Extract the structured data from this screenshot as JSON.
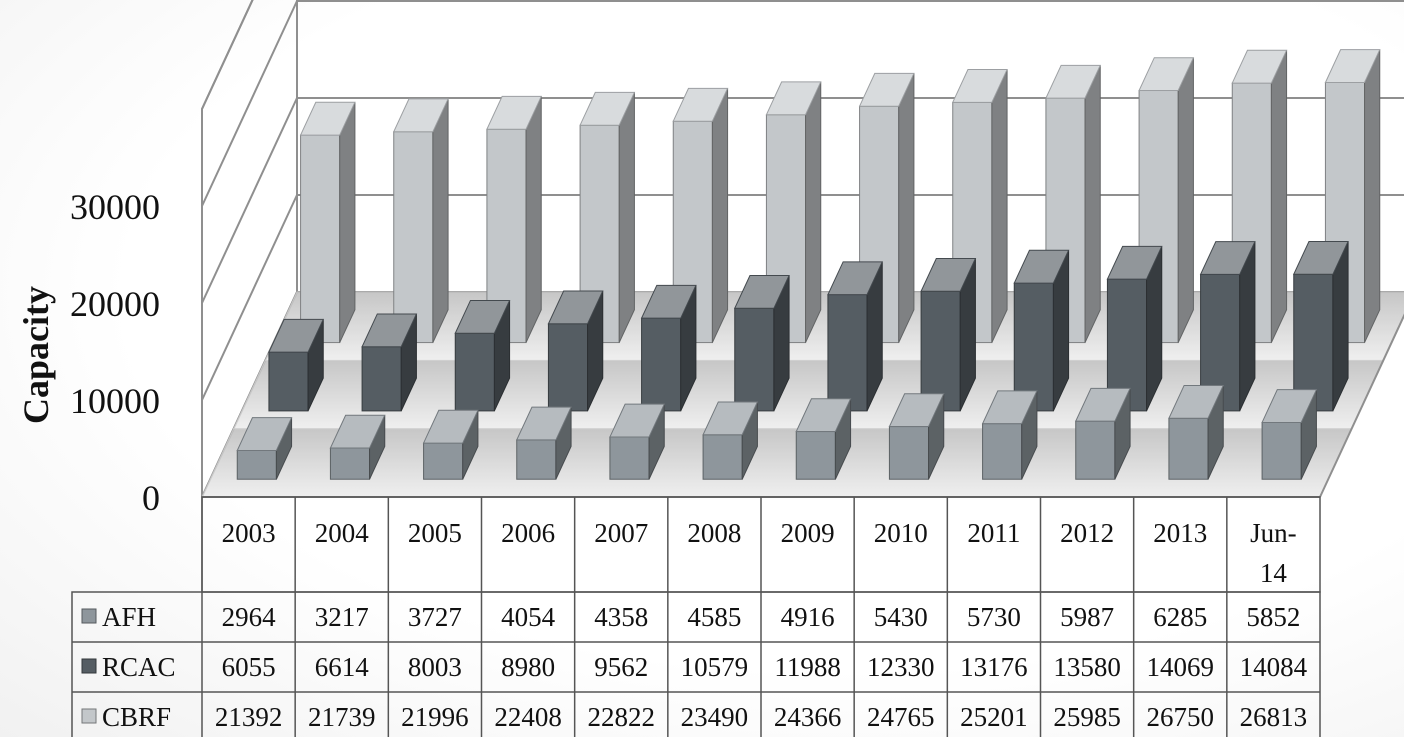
{
  "chart_data": {
    "type": "bar",
    "style": "3d-columns-with-data-table",
    "ylabel": "Capacity",
    "ylim": [
      0,
      40000
    ],
    "yticks": [
      0,
      10000,
      20000,
      30000
    ],
    "categories": [
      "2003",
      "2004",
      "2005",
      "2006",
      "2007",
      "2008",
      "2009",
      "2010",
      "2011",
      "2012",
      "2013",
      "Jun-14"
    ],
    "series": [
      {
        "name": "AFH",
        "color": "#8e969c",
        "values": [
          2964,
          3217,
          3727,
          4054,
          4358,
          4585,
          4916,
          5430,
          5730,
          5987,
          6285,
          5852
        ]
      },
      {
        "name": "RCAC",
        "color": "#555d63",
        "values": [
          6055,
          6614,
          8003,
          8980,
          9562,
          10579,
          11988,
          12330,
          13176,
          13580,
          14069,
          14084
        ]
      },
      {
        "name": "CBRF",
        "color": "#c3c7ca",
        "values": [
          21392,
          21739,
          21996,
          22408,
          22822,
          23490,
          24366,
          24765,
          25201,
          25985,
          26750,
          26813
        ]
      }
    ],
    "grid": true,
    "legend": "data-table"
  }
}
